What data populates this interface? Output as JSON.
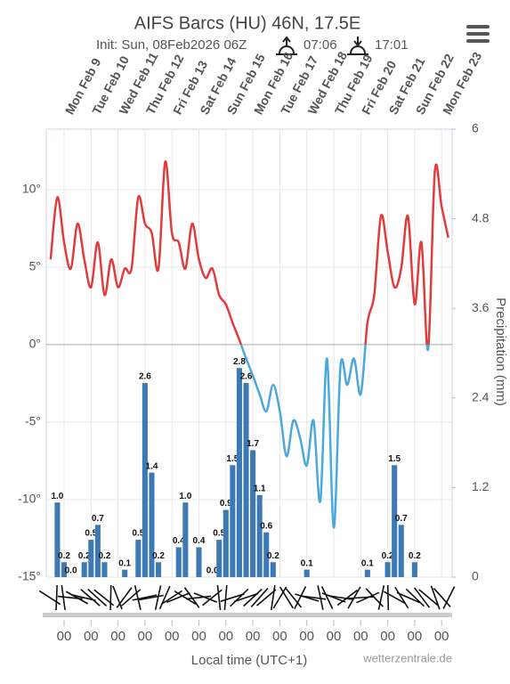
{
  "chart_data": {
    "type": "meteogram",
    "title": "AIFS Barcs (HU) 46N, 17.5E",
    "subtitle": "Init: Sun, 08Feb2026 06Z",
    "sunrise": "07:06",
    "sunset": "17:01",
    "day_labels": [
      "Mon Feb 9",
      "Tue Feb 10",
      "Wed Feb 11",
      "Thu Feb 12",
      "Fri Feb 13",
      "Sat Feb 14",
      "Sun Feb 15",
      "Mon Feb 16",
      "Tue Feb 17",
      "Wed Feb 18",
      "Thu Feb 19",
      "Fri Feb 20",
      "Sat Feb 21",
      "Sun Feb 22",
      "Mon Feb 23"
    ],
    "x_label": "Local time (UTC+1)",
    "y2_label": "Precipitation (mm)",
    "credit": "wetterzentrale.de",
    "xlim": [
      -0.66,
      14.39
    ],
    "xticks": [
      {
        "value": 0,
        "label": "00"
      },
      {
        "value": 1,
        "label": "00"
      },
      {
        "value": 2,
        "label": "00"
      },
      {
        "value": 3,
        "label": "00"
      },
      {
        "value": 4,
        "label": "00"
      },
      {
        "value": 5,
        "label": "00"
      },
      {
        "value": 6,
        "label": "00"
      },
      {
        "value": 7,
        "label": "00"
      },
      {
        "value": 8,
        "label": "00"
      },
      {
        "value": 9,
        "label": "00"
      },
      {
        "value": 10,
        "label": "00"
      },
      {
        "value": 11,
        "label": "00"
      },
      {
        "value": 12,
        "label": "00"
      },
      {
        "value": 13,
        "label": "00"
      },
      {
        "value": 14,
        "label": "00"
      }
    ],
    "ylim": [
      -15,
      13.9
    ],
    "yticks": [
      {
        "value": -15,
        "label": "-15°"
      },
      {
        "value": -10,
        "label": "-10°"
      },
      {
        "value": -5,
        "label": "-5°"
      },
      {
        "value": 0,
        "label": "0°"
      },
      {
        "value": 5,
        "label": "5°"
      },
      {
        "value": 10,
        "label": "10°"
      }
    ],
    "y2lim": [
      0,
      6
    ],
    "y2ticks": [
      0,
      1.2,
      2.4,
      3.6,
      4.8,
      6
    ],
    "grid": true,
    "temperature": {
      "warm_color": "#e03c3c",
      "cold_color": "#4aa8dc",
      "x": [
        -0.5,
        -0.25,
        0,
        0.25,
        0.5,
        0.75,
        1,
        1.25,
        1.5,
        1.75,
        2,
        2.25,
        2.5,
        2.75,
        3,
        3.25,
        3.5,
        3.75,
        4,
        4.25,
        4.5,
        4.75,
        5,
        5.25,
        5.5,
        5.75,
        6,
        6.25,
        6.5,
        6.75,
        7,
        7.25,
        7.5,
        7.75,
        8,
        8.25,
        8.5,
        8.75,
        9,
        9.25,
        9.5,
        9.75,
        10,
        10.25,
        10.5,
        10.75,
        11,
        11.25,
        11.5,
        11.75,
        12,
        12.25,
        12.5,
        12.75,
        13,
        13.25,
        13.5,
        13.75,
        14,
        14.25
      ],
      "values": [
        5.5,
        9.5,
        6.6,
        4.9,
        7.8,
        5.5,
        3.7,
        6.6,
        3.2,
        5.5,
        3.7,
        4.9,
        4.9,
        9.5,
        7.8,
        7.2,
        4.9,
        11.8,
        7.2,
        6.6,
        4.9,
        7.8,
        5.5,
        4.3,
        4.9,
        3.2,
        2.6,
        1.4,
        0.3,
        -0.9,
        -2.0,
        -3.2,
        -4.3,
        -2.6,
        -4.3,
        -7.2,
        -4.9,
        -6.0,
        -7.8,
        -4.9,
        -10.1,
        -0.9,
        -11.8,
        -1.4,
        -2.6,
        -0.9,
        -3.2,
        1.4,
        3.2,
        8.3,
        6.0,
        3.7,
        4.9,
        8.3,
        2.6,
        6.6,
        -0.3,
        11.2,
        8.9,
        6.9
      ]
    },
    "precipitation": {
      "color": "#3d7ab5",
      "x": [
        -0.25,
        0,
        0.25,
        0.75,
        1,
        1.25,
        1.5,
        2.25,
        2.75,
        3,
        3.25,
        3.5,
        4.25,
        4.5,
        5,
        5.5,
        5.75,
        6,
        6.25,
        6.5,
        6.75,
        7,
        7.25,
        7.5,
        7.75,
        9,
        11.25,
        12,
        12.25,
        12.5,
        13
      ],
      "values": [
        1.0,
        0.2,
        0.0,
        0.2,
        0.5,
        0.7,
        0.2,
        0.1,
        0.5,
        2.6,
        1.4,
        0.2,
        0.4,
        1.0,
        0.4,
        0.0,
        0.5,
        0.9,
        1.5,
        2.8,
        2.6,
        1.7,
        1.1,
        0.6,
        0.2,
        0.1,
        0.1,
        0.2,
        1.5,
        0.7,
        0.2
      ],
      "value_labels": [
        "1.0",
        "0.2",
        "0.0",
        "0.2",
        "0.5",
        "0.7",
        "0.2",
        "0.1",
        "0.5",
        "2.6",
        "1.4",
        "0.2",
        "0.4",
        "1.0",
        "0.4",
        "0.0",
        "0.5",
        "0.9",
        "1.5",
        "2.8",
        "2.6",
        "1.7",
        "1.1",
        "0.6",
        "0.2",
        "0.1",
        "0.1",
        "0.2",
        "1.5",
        "0.7",
        "0.2"
      ]
    }
  }
}
